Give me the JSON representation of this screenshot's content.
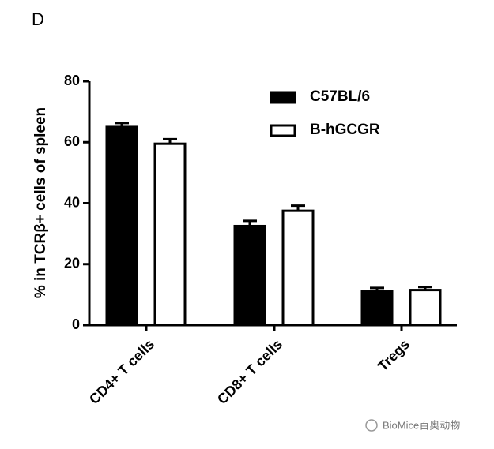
{
  "panel_label": "D",
  "watermark": "BioMice百奥动物",
  "chart_data": {
    "type": "bar",
    "ylabel": "% in TCRβ+ cells of spleen",
    "categories": [
      "CD4+ T cells",
      "CD8+ T cells",
      "Tregs"
    ],
    "series": [
      {
        "name": "C57BL/6",
        "color": "#000000",
        "values": [
          65,
          32.5,
          11
        ],
        "errors": [
          1.3,
          1.7,
          1.2
        ]
      },
      {
        "name": "B-hGCGR",
        "color": "#ffffff",
        "values": [
          59.5,
          37.5,
          11.5
        ],
        "errors": [
          1.5,
          1.7,
          1
        ]
      }
    ],
    "ylim": [
      0,
      80
    ],
    "yticks": [
      0,
      20,
      40,
      60,
      80
    ],
    "legend": "upper right"
  }
}
